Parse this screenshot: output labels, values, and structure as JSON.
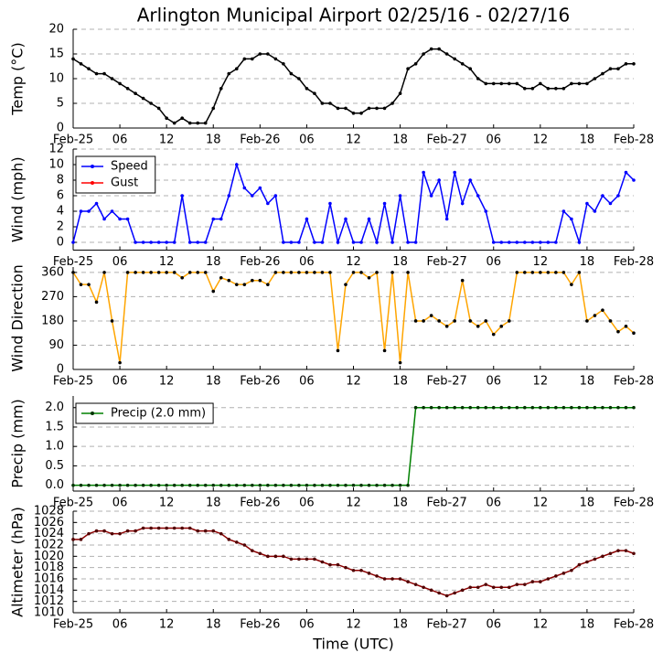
{
  "chart_data": [
    {
      "type": "line",
      "title": "Arlington Municipal Airport 02/25/16 - 02/27/16",
      "ylabel": "Temp (°C)",
      "x": [
        0,
        1,
        2,
        3,
        4,
        5,
        6,
        7,
        8,
        9,
        10,
        11,
        12,
        13,
        14,
        15,
        16,
        17,
        18,
        19,
        20,
        21,
        22,
        23,
        24,
        25,
        26,
        27,
        28,
        29,
        30,
        31,
        32,
        33,
        34,
        35,
        36,
        37,
        38,
        39,
        40,
        41,
        42,
        43,
        44,
        45,
        46,
        47,
        48,
        49,
        50,
        51,
        52,
        53,
        54,
        55,
        56,
        57,
        58,
        59,
        60,
        61,
        62,
        63,
        64,
        65,
        66,
        67,
        68,
        69,
        70,
        71,
        72
      ],
      "series": [
        {
          "color": "#000000",
          "values": [
            14,
            13,
            12,
            11,
            11,
            10,
            9,
            8,
            7,
            6,
            5,
            4,
            2,
            1,
            2,
            1,
            1,
            1,
            4,
            8,
            11,
            12,
            14,
            14,
            15,
            15,
            14,
            13,
            11,
            10,
            8,
            7,
            5,
            5,
            4,
            4,
            3,
            3,
            4,
            4,
            4,
            5,
            7,
            12,
            13,
            15,
            16,
            16,
            15,
            14,
            13,
            12,
            10,
            9,
            9,
            9,
            9,
            9,
            8,
            8,
            9,
            8,
            8,
            8,
            9,
            9,
            9,
            10,
            11,
            12,
            12,
            13,
            13
          ]
        }
      ],
      "marker_color": "#000000",
      "xlim": [
        0,
        72
      ],
      "xticks": [
        {
          "value": 0,
          "label": "Feb-25"
        },
        {
          "value": 6,
          "label": "06"
        },
        12,
        18,
        {
          "value": 24,
          "label": "Feb-26"
        },
        {
          "value": 30,
          "label": "06"
        },
        {
          "value": 36,
          "label": "12"
        },
        {
          "value": 42,
          "label": "18"
        },
        {
          "value": 48,
          "label": "Feb-27"
        },
        {
          "value": 54,
          "label": "06"
        },
        {
          "value": 60,
          "label": "12"
        },
        {
          "value": 66,
          "label": "18"
        },
        {
          "value": 72,
          "label": "Feb-28"
        }
      ],
      "ylim": [
        0,
        20
      ],
      "yticks": [
        0,
        5,
        10,
        15,
        20
      ],
      "grid": true
    },
    {
      "type": "line",
      "ylabel": "Wind (mph)",
      "legend": "upper left",
      "x": [
        0,
        1,
        2,
        3,
        4,
        5,
        6,
        7,
        8,
        9,
        10,
        11,
        12,
        13,
        14,
        15,
        16,
        17,
        18,
        19,
        20,
        21,
        22,
        23,
        24,
        25,
        26,
        27,
        28,
        29,
        30,
        31,
        32,
        33,
        34,
        35,
        36,
        37,
        38,
        39,
        40,
        41,
        42,
        43,
        44,
        45,
        46,
        47,
        48,
        49,
        50,
        51,
        52,
        53,
        54,
        55,
        56,
        57,
        58,
        59,
        60,
        61,
        62,
        63,
        64,
        65,
        66,
        67,
        68,
        69,
        70,
        71,
        72
      ],
      "series": [
        {
          "name": "Speed",
          "color": "#0000ff",
          "values": [
            0,
            4,
            4,
            5,
            3,
            4,
            3,
            3,
            0,
            0,
            0,
            0,
            0,
            0,
            6,
            0,
            0,
            0,
            3,
            3,
            6,
            10,
            7,
            6,
            7,
            5,
            6,
            0,
            0,
            0,
            3,
            0,
            0,
            5,
            0,
            3,
            0,
            0,
            3,
            0,
            5,
            0,
            6,
            0,
            0,
            9,
            6,
            8,
            3,
            9,
            5,
            8,
            6,
            4,
            0,
            0,
            0,
            0,
            0,
            0,
            0,
            0,
            0,
            4,
            3,
            0,
            5,
            4,
            6,
            5,
            6,
            9,
            8
          ]
        },
        {
          "name": "Gust",
          "color": "#ff0000",
          "values": [
            null,
            null,
            null,
            null,
            null,
            null,
            null,
            null,
            null,
            null,
            null,
            null,
            null,
            null,
            null,
            null,
            null,
            null,
            null,
            null,
            null,
            null,
            null,
            null,
            null,
            null,
            null,
            null,
            null,
            null,
            null,
            null,
            null,
            null,
            null,
            null,
            null,
            null,
            null,
            null,
            null,
            null,
            null,
            null,
            null,
            null,
            null,
            null,
            null,
            null,
            null,
            null,
            null,
            null,
            null,
            null,
            null,
            null,
            null,
            null,
            null,
            null,
            null,
            null,
            null,
            null,
            null,
            null,
            null,
            null,
            null,
            null,
            null
          ]
        }
      ],
      "xlim": [
        0,
        72
      ],
      "xticks": [
        {
          "value": 0,
          "label": "Feb-25"
        },
        {
          "value": 6,
          "label": "06"
        },
        12,
        18,
        {
          "value": 24,
          "label": "Feb-26"
        },
        {
          "value": 30,
          "label": "06"
        },
        {
          "value": 36,
          "label": "12"
        },
        {
          "value": 42,
          "label": "18"
        },
        {
          "value": 48,
          "label": "Feb-27"
        },
        {
          "value": 54,
          "label": "06"
        },
        {
          "value": 60,
          "label": "12"
        },
        {
          "value": 66,
          "label": "18"
        },
        {
          "value": 72,
          "label": "Feb-28"
        }
      ],
      "ylim": [
        -1,
        12
      ],
      "yticks": [
        0,
        2,
        4,
        6,
        8,
        10,
        12
      ],
      "grid": true
    },
    {
      "type": "line",
      "ylabel": "Wind Direction",
      "x": [
        0,
        1,
        2,
        3,
        4,
        5,
        6,
        7,
        8,
        9,
        10,
        11,
        12,
        13,
        14,
        15,
        16,
        17,
        18,
        19,
        20,
        21,
        22,
        23,
        24,
        25,
        26,
        27,
        28,
        29,
        30,
        31,
        32,
        33,
        34,
        35,
        36,
        37,
        38,
        39,
        40,
        41,
        42,
        43,
        44,
        45,
        46,
        47,
        48,
        49,
        50,
        51,
        52,
        53,
        54,
        55,
        56,
        57,
        58,
        59,
        60,
        61,
        62,
        63,
        64,
        65,
        66,
        67,
        68,
        69,
        70,
        71,
        72
      ],
      "series": [
        {
          "color": "#ffa500",
          "values": [
            360,
            315,
            315,
            250,
            360,
            180,
            25,
            360,
            360,
            360,
            360,
            360,
            360,
            360,
            340,
            360,
            360,
            360,
            290,
            340,
            330,
            315,
            315,
            330,
            330,
            315,
            360,
            360,
            360,
            360,
            360,
            360,
            360,
            360,
            70,
            315,
            360,
            360,
            340,
            360,
            70,
            360,
            25,
            360,
            180,
            180,
            200,
            180,
            160,
            180,
            330,
            180,
            160,
            180,
            130,
            160,
            180,
            360,
            360,
            360,
            360,
            360,
            360,
            360,
            315,
            360,
            180,
            200,
            220,
            180,
            140,
            160,
            135
          ]
        }
      ],
      "marker_color": "#000000",
      "xlim": [
        0,
        72
      ],
      "xticks": [
        {
          "value": 0,
          "label": "Feb-25"
        },
        {
          "value": 6,
          "label": "06"
        },
        12,
        18,
        {
          "value": 24,
          "label": "Feb-26"
        },
        {
          "value": 30,
          "label": "06"
        },
        {
          "value": 36,
          "label": "12"
        },
        {
          "value": 42,
          "label": "18"
        },
        {
          "value": 48,
          "label": "Feb-27"
        },
        {
          "value": 54,
          "label": "06"
        },
        {
          "value": 60,
          "label": "12"
        },
        {
          "value": 66,
          "label": "18"
        },
        {
          "value": 72,
          "label": "Feb-28"
        }
      ],
      "ylim": [
        0,
        380
      ],
      "yticks": [
        0,
        90,
        180,
        270,
        360
      ],
      "grid": true
    },
    {
      "type": "line",
      "ylabel": "Precip (mm)",
      "legend": "upper left",
      "x": [
        0,
        1,
        2,
        3,
        4,
        5,
        6,
        7,
        8,
        9,
        10,
        11,
        12,
        13,
        14,
        15,
        16,
        17,
        18,
        19,
        20,
        21,
        22,
        23,
        24,
        25,
        26,
        27,
        28,
        29,
        30,
        31,
        32,
        33,
        34,
        35,
        36,
        37,
        38,
        39,
        40,
        41,
        42,
        43,
        44,
        45,
        46,
        47,
        48,
        49,
        50,
        51,
        52,
        53,
        54,
        55,
        56,
        57,
        58,
        59,
        60,
        61,
        62,
        63,
        64,
        65,
        66,
        67,
        68,
        69,
        70,
        71,
        72
      ],
      "series": [
        {
          "name": "Precip (2.0 mm)",
          "color": "#008000",
          "values": [
            0,
            0,
            0,
            0,
            0,
            0,
            0,
            0,
            0,
            0,
            0,
            0,
            0,
            0,
            0,
            0,
            0,
            0,
            0,
            0,
            0,
            0,
            0,
            0,
            0,
            0,
            0,
            0,
            0,
            0,
            0,
            0,
            0,
            0,
            0,
            0,
            0,
            0,
            0,
            0,
            0,
            0,
            0,
            0,
            2,
            2,
            2,
            2,
            2,
            2,
            2,
            2,
            2,
            2,
            2,
            2,
            2,
            2,
            2,
            2,
            2,
            2,
            2,
            2,
            2,
            2,
            2,
            2,
            2,
            2,
            2,
            2,
            2
          ]
        }
      ],
      "marker_color": "#003300",
      "xlim": [
        0,
        72
      ],
      "xticks": [
        {
          "value": 0,
          "label": "Feb-25"
        },
        {
          "value": 6,
          "label": "06"
        },
        12,
        18,
        {
          "value": 24,
          "label": "Feb-26"
        },
        {
          "value": 30,
          "label": "06"
        },
        {
          "value": 36,
          "label": "12"
        },
        {
          "value": 42,
          "label": "18"
        },
        {
          "value": 48,
          "label": "Feb-27"
        },
        {
          "value": 54,
          "label": "06"
        },
        {
          "value": 60,
          "label": "12"
        },
        {
          "value": 66,
          "label": "18"
        },
        {
          "value": 72,
          "label": "Feb-28"
        }
      ],
      "ylim": [
        -0.15,
        2.3
      ],
      "yticks": [
        {
          "value": 0,
          "label": "0.0"
        },
        {
          "value": 0.5,
          "label": "0.5"
        },
        {
          "value": 1,
          "label": "1.0"
        },
        {
          "value": 1.5,
          "label": "1.5"
        },
        {
          "value": 2,
          "label": "2.0"
        }
      ],
      "grid": true
    },
    {
      "type": "line",
      "ylabel": "Altimeter (hPa)",
      "xlabel": "Time (UTC)",
      "x": [
        0,
        1,
        2,
        3,
        4,
        5,
        6,
        7,
        8,
        9,
        10,
        11,
        12,
        13,
        14,
        15,
        16,
        17,
        18,
        19,
        20,
        21,
        22,
        23,
        24,
        25,
        26,
        27,
        28,
        29,
        30,
        31,
        32,
        33,
        34,
        35,
        36,
        37,
        38,
        39,
        40,
        41,
        42,
        43,
        44,
        45,
        46,
        47,
        48,
        49,
        50,
        51,
        52,
        53,
        54,
        55,
        56,
        57,
        58,
        59,
        60,
        61,
        62,
        63,
        64,
        65,
        66,
        67,
        68,
        69,
        70,
        71,
        72
      ],
      "series": [
        {
          "color": "#8b0000",
          "values": [
            1023,
            1023,
            1024,
            1024.5,
            1024.5,
            1024,
            1024,
            1024.5,
            1024.5,
            1025,
            1025,
            1025,
            1025,
            1025,
            1025,
            1025,
            1024.5,
            1024.5,
            1024.5,
            1024,
            1023,
            1022.5,
            1022,
            1021,
            1020.5,
            1020,
            1020,
            1020,
            1019.5,
            1019.5,
            1019.5,
            1019.5,
            1019,
            1018.5,
            1018.5,
            1018,
            1017.5,
            1017.5,
            1017,
            1016.5,
            1016,
            1016,
            1016,
            1015.5,
            1015,
            1014.5,
            1014,
            1013.5,
            1013,
            1013.5,
            1014,
            1014.5,
            1014.5,
            1015,
            1014.5,
            1014.5,
            1014.5,
            1015,
            1015,
            1015.5,
            1015.5,
            1016,
            1016.5,
            1017,
            1017.5,
            1018.5,
            1019,
            1019.5,
            1020,
            1020.5,
            1021,
            1021,
            1020.5
          ]
        }
      ],
      "marker_color": "#500000",
      "xlim": [
        0,
        72
      ],
      "xticks": [
        {
          "value": 0,
          "label": "Feb-25"
        },
        {
          "value": 6,
          "label": "06"
        },
        12,
        18,
        {
          "value": 24,
          "label": "Feb-26"
        },
        {
          "value": 30,
          "label": "06"
        },
        {
          "value": 36,
          "label": "12"
        },
        {
          "value": 42,
          "label": "18"
        },
        {
          "value": 48,
          "label": "Feb-27"
        },
        {
          "value": 54,
          "label": "06"
        },
        {
          "value": 60,
          "label": "12"
        },
        {
          "value": 66,
          "label": "18"
        },
        {
          "value": 72,
          "label": "Feb-28"
        }
      ],
      "ylim": [
        1010,
        1028
      ],
      "yticks": [
        1010,
        1012,
        1014,
        1016,
        1018,
        1020,
        1022,
        1024,
        1026,
        1028
      ],
      "grid": true
    }
  ]
}
